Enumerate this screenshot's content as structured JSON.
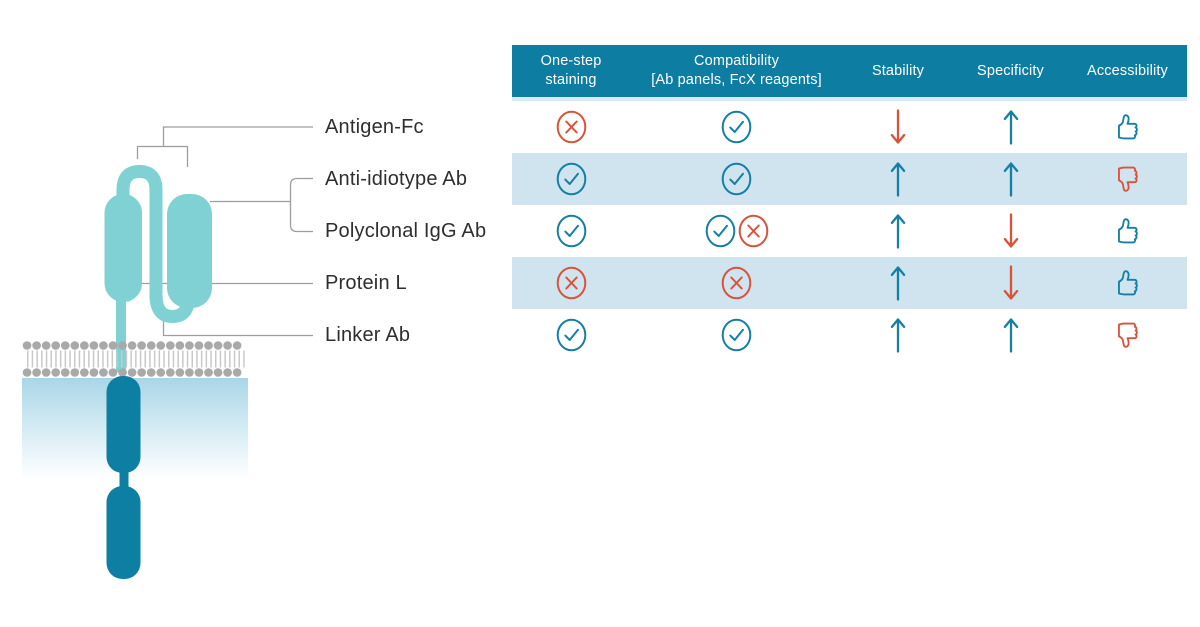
{
  "colors": {
    "header_bg": "#0d7ea2",
    "row_highlight": "#cfe4ee",
    "icon_teal": "#157fa4",
    "icon_orange": "#d9533b",
    "scfv_teal": "#7fd1d3",
    "intracellular_teal": "#0d7fa2"
  },
  "diagram": {
    "labels": [
      "Antigen-Fc",
      "Anti-idiotype Ab",
      "Polyclonal IgG Ab",
      "Protein L",
      "Linker Ab"
    ]
  },
  "table": {
    "columns": [
      {
        "line1": "One-step",
        "line2": "staining"
      },
      {
        "line1": "Compatibility",
        "line2": "[Ab panels, FcX reagents]"
      },
      {
        "line1": "Stability",
        "line2": ""
      },
      {
        "line1": "Specificity",
        "line2": ""
      },
      {
        "line1": "Accessibility",
        "line2": ""
      }
    ],
    "rows": [
      {
        "label": "Antigen-Fc",
        "highlighted": false,
        "one_step": [
          "cross"
        ],
        "compatibility": [
          "check"
        ],
        "stability": [
          "arrow-down"
        ],
        "specificity": [
          "arrow-up"
        ],
        "accessibility": [
          "thumb-up"
        ]
      },
      {
        "label": "Anti-idiotype Ab",
        "highlighted": true,
        "one_step": [
          "check"
        ],
        "compatibility": [
          "check"
        ],
        "stability": [
          "arrow-up"
        ],
        "specificity": [
          "arrow-up"
        ],
        "accessibility": [
          "thumb-down"
        ]
      },
      {
        "label": "Polyclonal IgG Ab",
        "highlighted": false,
        "one_step": [
          "check"
        ],
        "compatibility": [
          "check",
          "cross"
        ],
        "stability": [
          "arrow-up"
        ],
        "specificity": [
          "arrow-down"
        ],
        "accessibility": [
          "thumb-up"
        ]
      },
      {
        "label": "Protein L",
        "highlighted": true,
        "one_step": [
          "cross"
        ],
        "compatibility": [
          "cross"
        ],
        "stability": [
          "arrow-up"
        ],
        "specificity": [
          "arrow-down"
        ],
        "accessibility": [
          "thumb-up"
        ]
      },
      {
        "label": "Linker Ab",
        "highlighted": false,
        "one_step": [
          "check"
        ],
        "compatibility": [
          "check"
        ],
        "stability": [
          "arrow-up"
        ],
        "specificity": [
          "arrow-up"
        ],
        "accessibility": [
          "thumb-down"
        ]
      }
    ]
  }
}
